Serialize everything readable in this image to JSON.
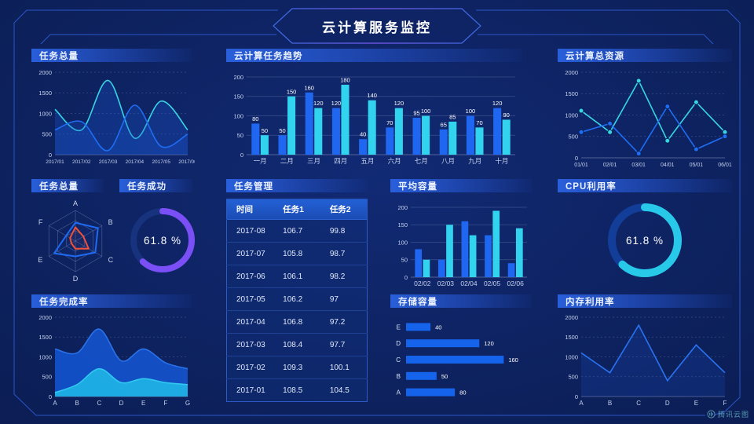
{
  "header": {
    "title": "云计算服务监控"
  },
  "watermark": {
    "label": "腾讯云图"
  },
  "panels": {
    "task_total_line": {
      "title": "任务总量"
    },
    "task_trend": {
      "title": "云计算任务趋势"
    },
    "total_resources": {
      "title": "云计算总资源"
    },
    "task_radar": {
      "title": "任务总量"
    },
    "task_success": {
      "title": "任务成功"
    },
    "task_table": {
      "title": "任务管理"
    },
    "avg_capacity": {
      "title": "平均容量"
    },
    "cpu": {
      "title": "CPU利用率"
    },
    "completion": {
      "title": "任务完成率"
    },
    "storage": {
      "title": "存储容量"
    },
    "memory": {
      "title": "内存利用率"
    }
  },
  "colors": {
    "accent_blue": "#1f6df2",
    "accent_cyan": "#33d4ea",
    "accent_purple": "#7a4ff5",
    "accent_red": "#f05138",
    "grid": "#aebade"
  },
  "chart_data": [
    {
      "id": "task_total_line",
      "type": "line",
      "smooth": true,
      "markers": false,
      "title": "任务总量",
      "xlabel": "",
      "ylabel": "",
      "x": [
        "2017/01",
        "2017/02",
        "2017/03",
        "2017/04",
        "2017/05",
        "2017/06"
      ],
      "ylim": [
        0,
        2000
      ],
      "yticks": [
        0,
        500,
        1000,
        1500,
        2000
      ],
      "dashed": true,
      "xfs": 6.5,
      "series": [
        {
          "name": "cyan",
          "color": "#38d6e2",
          "values": [
            1100,
            600,
            1800,
            400,
            1300,
            600
          ],
          "fill": 0.3,
          "fillColor": "#1c56d2"
        },
        {
          "name": "blue",
          "color": "#1f6df2",
          "values": [
            600,
            800,
            100,
            1200,
            200,
            500
          ],
          "fill": 0.3,
          "fillColor": "#1c56d2"
        }
      ]
    },
    {
      "id": "task_trend",
      "type": "bar",
      "labels": true,
      "title": "云计算任务趋势",
      "x": [
        "一月",
        "二月",
        "三月",
        "四月",
        "五月",
        "六月",
        "七月",
        "八月",
        "九月",
        "十月"
      ],
      "ylim": [
        0,
        200
      ],
      "yticks": [
        0,
        50,
        100,
        150,
        200
      ],
      "series": [
        {
          "name": "blue",
          "color": "#1f66f0",
          "values": [
            80,
            50,
            160,
            120,
            40,
            70,
            95,
            65,
            100,
            120
          ]
        },
        {
          "name": "cyan",
          "color": "#32d3ee",
          "values": [
            50,
            150,
            120,
            180,
            140,
            120,
            100,
            85,
            70,
            90
          ]
        }
      ]
    },
    {
      "id": "total_resources",
      "type": "line",
      "smooth": false,
      "markers": true,
      "title": "云计算总资源",
      "x": [
        "01/01",
        "02/01",
        "03/01",
        "04/01",
        "05/01",
        "06/01"
      ],
      "ylim": [
        0,
        2000
      ],
      "yticks": [
        0,
        500,
        1000,
        1500,
        2000
      ],
      "dashed": true,
      "xfs": 7,
      "series": [
        {
          "name": "cyan",
          "color": "#38d6e2",
          "values": [
            1100,
            600,
            1800,
            400,
            1300,
            600
          ],
          "fill": 0
        },
        {
          "name": "blue",
          "color": "#1f6df2",
          "values": [
            600,
            800,
            100,
            1200,
            200,
            500
          ],
          "fill": 0
        }
      ]
    },
    {
      "id": "task_radar",
      "type": "radar",
      "title": "任务总量",
      "axes": [
        "A",
        "B",
        "C",
        "D",
        "E",
        "F"
      ],
      "max": 100,
      "series": [
        {
          "name": "blue",
          "color": "#1e6bf2",
          "values": [
            60,
            85,
            75,
            50,
            80,
            35
          ],
          "fillOpacity": 0.06
        },
        {
          "name": "red",
          "color": "#f05138",
          "values": [
            45,
            30,
            50,
            25,
            15,
            20
          ],
          "fillOpacity": 0.05
        }
      ]
    },
    {
      "id": "task_success",
      "type": "donut",
      "title": "任务成功",
      "value": 61.8,
      "label": "61.8 %",
      "color": "#7a4ff5",
      "track": "#17337e",
      "width": 8,
      "pad": 18
    },
    {
      "id": "task_table",
      "type": "table",
      "title": "任务管理",
      "columns": [
        "时间",
        "任务1",
        "任务2"
      ],
      "rows": [
        [
          "2017-08",
          "106.7",
          "99.8"
        ],
        [
          "2017-07",
          "105.8",
          "98.7"
        ],
        [
          "2017-06",
          "106.1",
          "98.2"
        ],
        [
          "2017-05",
          "106.2",
          "97"
        ],
        [
          "2017-04",
          "106.8",
          "97.2"
        ],
        [
          "2017-03",
          "108.4",
          "97.7"
        ],
        [
          "2017-02",
          "109.3",
          "100.1"
        ],
        [
          "2017-01",
          "108.5",
          "104.5"
        ]
      ]
    },
    {
      "id": "avg_capacity",
      "type": "bar",
      "labels": false,
      "title": "平均容量",
      "x": [
        "02/02",
        "02/03",
        "02/04",
        "02/05",
        "02/06"
      ],
      "ylim": [
        0,
        200
      ],
      "yticks": [
        0,
        50,
        100,
        150,
        200
      ],
      "series": [
        {
          "name": "blue",
          "color": "#1f66f0",
          "values": [
            80,
            50,
            160,
            120,
            40
          ]
        },
        {
          "name": "cyan",
          "color": "#32d3ee",
          "values": [
            50,
            150,
            120,
            190,
            140
          ]
        }
      ]
    },
    {
      "id": "cpu",
      "type": "donut",
      "title": "CPU利用率",
      "value": 61.8,
      "label": "61.8 %",
      "color": "#28c9e8",
      "track": "#123e99",
      "width": 10,
      "pad": 16
    },
    {
      "id": "completion",
      "type": "line",
      "smooth": true,
      "markers": false,
      "title": "任务完成率",
      "x": [
        "A",
        "B",
        "C",
        "D",
        "E",
        "F",
        "G"
      ],
      "ylim": [
        0,
        2000
      ],
      "yticks": [
        0,
        500,
        1000,
        1500,
        2000
      ],
      "dashed": true,
      "xfs": 8,
      "series": [
        {
          "name": "blue",
          "color": "#2a72e8",
          "values": [
            1200,
            1100,
            1700,
            900,
            1200,
            850,
            700
          ],
          "fill": 0.92,
          "fillColor": "#1353cc"
        },
        {
          "name": "cyan",
          "color": "#30c8ee",
          "values": [
            100,
            300,
            700,
            350,
            450,
            350,
            300
          ],
          "fill": 0.95,
          "fillColor": "#1fb0e6"
        }
      ]
    },
    {
      "id": "storage",
      "type": "hbar",
      "title": "存储容量",
      "categories": [
        "E",
        "D",
        "C",
        "B",
        "A"
      ],
      "values": [
        40,
        120,
        160,
        50,
        80
      ],
      "color": "#1563ea",
      "max": 175
    },
    {
      "id": "memory",
      "type": "line",
      "smooth": false,
      "markers": false,
      "title": "内存利用率",
      "x": [
        "A",
        "B",
        "C",
        "D",
        "E",
        "F"
      ],
      "ylim": [
        0,
        2000
      ],
      "yticks": [
        0,
        500,
        1000,
        1500,
        2000
      ],
      "dashed": true,
      "xfs": 8,
      "series": [
        {
          "name": "blue",
          "color": "#2a72f0",
          "values": [
            1100,
            600,
            1800,
            400,
            1300,
            600
          ],
          "fill": 0.2,
          "fillColor": "#1c56d2"
        }
      ]
    }
  ]
}
